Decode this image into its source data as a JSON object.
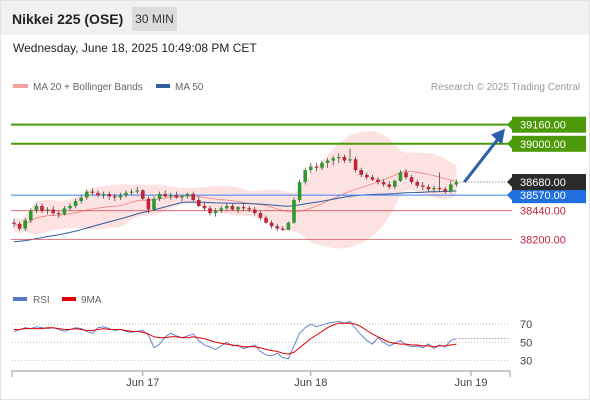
{
  "header": {
    "title": "Nikkei 225 (OSE)",
    "timeframe": "30 MIN",
    "datetime": "Wednesday, June 18, 2025 10:49:08 PM CET"
  },
  "legend": {
    "bollinger": "MA 20 + Bollinger Bands",
    "ma50": "MA 50",
    "rsi": "RSI",
    "ma9": "9MA",
    "credit": "Research © 2025 Trading Central"
  },
  "colors": {
    "up": "#2e9a2e",
    "down": "#c0243a",
    "bollinger_fill": "#fde2e2",
    "bollinger_mid": "#f08080",
    "ma50": "#2f5f9e",
    "resistance": "#4c9a0a",
    "support": "#e0555f",
    "pivot": "#3b82f6",
    "rsi": "#5577cc",
    "ma9": "#e00000",
    "arrow": "#2b5fa8"
  },
  "chart_data": [
    {
      "type": "candlestick",
      "ylim": [
        37860,
        39400
      ],
      "x_ticks": [
        "Jun 17",
        "Jun 18",
        "Jun 19"
      ],
      "last_price": "38680.00",
      "levels": [
        {
          "value": 39160,
          "label": "39160.00",
          "kind": "resistance"
        },
        {
          "value": 39000,
          "label": "39000.00",
          "kind": "resistance"
        },
        {
          "value": 38570,
          "label": "38570.00",
          "kind": "pivot"
        },
        {
          "value": 38440,
          "label": "38440.00",
          "kind": "support"
        },
        {
          "value": 38200,
          "label": "38200.00",
          "kind": "support"
        }
      ],
      "candles": [
        [
          38340,
          38370,
          38300,
          38330
        ],
        [
          38330,
          38350,
          38270,
          38290
        ],
        [
          38290,
          38380,
          38270,
          38360
        ],
        [
          38360,
          38460,
          38340,
          38440
        ],
        [
          38440,
          38500,
          38420,
          38480
        ],
        [
          38480,
          38500,
          38420,
          38440
        ],
        [
          38440,
          38470,
          38410,
          38450
        ],
        [
          38450,
          38480,
          38400,
          38420
        ],
        [
          38420,
          38440,
          38380,
          38410
        ],
        [
          38410,
          38480,
          38400,
          38460
        ],
        [
          38460,
          38500,
          38440,
          38480
        ],
        [
          38480,
          38540,
          38460,
          38520
        ],
        [
          38520,
          38570,
          38500,
          38550
        ],
        [
          38550,
          38620,
          38530,
          38600
        ],
        [
          38600,
          38630,
          38570,
          38590
        ],
        [
          38590,
          38610,
          38550,
          38570
        ],
        [
          38570,
          38600,
          38540,
          38580
        ],
        [
          38580,
          38600,
          38530,
          38560
        ],
        [
          38560,
          38580,
          38520,
          38550
        ],
        [
          38550,
          38590,
          38530,
          38570
        ],
        [
          38570,
          38610,
          38550,
          38590
        ],
        [
          38590,
          38620,
          38570,
          38600
        ],
        [
          38600,
          38640,
          38580,
          38610
        ],
        [
          38610,
          38620,
          38530,
          38540
        ],
        [
          38540,
          38560,
          38420,
          38450
        ],
        [
          38450,
          38560,
          38440,
          38540
        ],
        [
          38540,
          38600,
          38520,
          38580
        ],
        [
          38580,
          38610,
          38550,
          38560
        ],
        [
          38560,
          38590,
          38530,
          38570
        ],
        [
          38570,
          38600,
          38540,
          38550
        ],
        [
          38550,
          38570,
          38520,
          38560
        ],
        [
          38560,
          38590,
          38540,
          38580
        ],
        [
          38580,
          38600,
          38520,
          38530
        ],
        [
          38530,
          38560,
          38470,
          38480
        ],
        [
          38480,
          38510,
          38440,
          38460
        ],
        [
          38460,
          38480,
          38400,
          38420
        ],
        [
          38420,
          38460,
          38390,
          38440
        ],
        [
          38440,
          38480,
          38420,
          38460
        ],
        [
          38460,
          38500,
          38440,
          38480
        ],
        [
          38480,
          38500,
          38440,
          38450
        ],
        [
          38450,
          38480,
          38420,
          38470
        ],
        [
          38470,
          38500,
          38440,
          38460
        ],
        [
          38460,
          38480,
          38430,
          38450
        ],
        [
          38450,
          38470,
          38400,
          38420
        ],
        [
          38420,
          38440,
          38360,
          38380
        ],
        [
          38380,
          38400,
          38330,
          38340
        ],
        [
          38340,
          38360,
          38290,
          38310
        ],
        [
          38310,
          38330,
          38270,
          38290
        ],
        [
          38290,
          38310,
          38270,
          38280
        ],
        [
          38280,
          38350,
          38280,
          38340
        ],
        [
          38340,
          38550,
          38330,
          38530
        ],
        [
          38530,
          38700,
          38510,
          38680
        ],
        [
          38680,
          38800,
          38660,
          38780
        ],
        [
          38780,
          38840,
          38750,
          38810
        ],
        [
          38810,
          38840,
          38770,
          38800
        ],
        [
          38800,
          38860,
          38780,
          38840
        ],
        [
          38840,
          38880,
          38800,
          38860
        ],
        [
          38860,
          38900,
          38820,
          38880
        ],
        [
          38880,
          38920,
          38840,
          38890
        ],
        [
          38890,
          38910,
          38840,
          38860
        ],
        [
          38860,
          38960,
          38840,
          38870
        ],
        [
          38870,
          38890,
          38760,
          38780
        ],
        [
          38780,
          38800,
          38720,
          38740
        ],
        [
          38740,
          38760,
          38700,
          38720
        ],
        [
          38720,
          38740,
          38690,
          38700
        ],
        [
          38700,
          38720,
          38660,
          38680
        ],
        [
          38680,
          38700,
          38640,
          38660
        ],
        [
          38660,
          38690,
          38620,
          38640
        ],
        [
          38640,
          38700,
          38620,
          38690
        ],
        [
          38690,
          38780,
          38680,
          38760
        ],
        [
          38760,
          38790,
          38700,
          38720
        ],
        [
          38720,
          38740,
          38660,
          38680
        ],
        [
          38680,
          38700,
          38630,
          38650
        ],
        [
          38650,
          38680,
          38610,
          38640
        ],
        [
          38640,
          38660,
          38600,
          38620
        ],
        [
          38620,
          38650,
          38590,
          38630
        ],
        [
          38630,
          38760,
          38600,
          38620
        ],
        [
          38620,
          38640,
          38580,
          38600
        ],
        [
          38600,
          38690,
          38590,
          38660
        ],
        [
          38660,
          38700,
          38640,
          38680
        ]
      ]
    },
    {
      "type": "line",
      "name": "RSI",
      "ylim": [
        25,
        80
      ],
      "y_ticks": [
        70,
        50,
        30
      ],
      "rsi": [
        62,
        64,
        66,
        65,
        67,
        66,
        65,
        66,
        64,
        62,
        64,
        66,
        65,
        62,
        60,
        66,
        67,
        65,
        63,
        64,
        62,
        61,
        62,
        63,
        58,
        44,
        48,
        56,
        60,
        57,
        55,
        57,
        59,
        52,
        47,
        45,
        42,
        46,
        50,
        46,
        47,
        43,
        45,
        47,
        40,
        36,
        35,
        38,
        33,
        32,
        46,
        60,
        66,
        70,
        67,
        69,
        71,
        72,
        73,
        71,
        73,
        65,
        58,
        52,
        48,
        55,
        50,
        46,
        49,
        52,
        47,
        45,
        46,
        44,
        48,
        43,
        47,
        45,
        52,
        54
      ],
      "ma9": [
        64,
        64,
        65,
        65,
        65,
        65,
        66,
        66,
        65,
        64,
        64,
        65,
        64,
        63,
        63,
        64,
        65,
        64,
        64,
        64,
        63,
        62,
        62,
        61,
        59,
        56,
        55,
        55,
        56,
        56,
        55,
        55,
        56,
        55,
        54,
        52,
        50,
        49,
        48,
        47,
        46,
        45,
        45,
        45,
        44,
        42,
        41,
        40,
        38,
        37,
        39,
        44,
        49,
        54,
        58,
        62,
        66,
        69,
        71,
        71,
        71,
        70,
        67,
        63,
        59,
        56,
        53,
        50,
        49,
        48,
        48,
        47,
        47,
        46,
        46,
        45,
        46,
        46,
        47,
        48
      ]
    }
  ]
}
